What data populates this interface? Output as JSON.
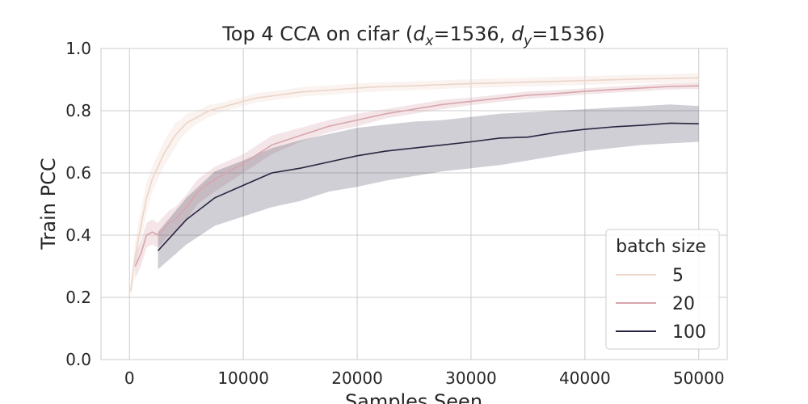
{
  "chart_data": {
    "type": "line",
    "title_prefix": "Top 4 CCA on cifar (",
    "title_dx_sym": "d",
    "title_dx_sub": "x",
    "title_dx_val": "=1536, ",
    "title_dy_sym": "d",
    "title_dy_sub": "y",
    "title_dy_val": "=1536)",
    "xlabel": "Samples Seen",
    "ylabel": "Train PCC",
    "xlim": [
      -2500,
      52500
    ],
    "ylim": [
      0.0,
      1.0
    ],
    "xticks": [
      0,
      10000,
      20000,
      30000,
      40000,
      50000
    ],
    "yticks": [
      0.0,
      0.2,
      0.4,
      0.6,
      0.8,
      1.0
    ],
    "ytick_labels": [
      "0.0",
      "0.2",
      "0.4",
      "0.6",
      "0.8",
      "1.0"
    ],
    "grid": true,
    "legend_title": "batch size",
    "legend_position": "lower-right",
    "series": [
      {
        "name": "5",
        "color": "#ecd5c8",
        "x": [
          100,
          500,
          1000,
          1500,
          2000,
          2500,
          3000,
          3500,
          4000,
          4500,
          5000,
          6000,
          7000,
          8000,
          9000,
          10000,
          11000,
          12000,
          13000,
          14000,
          15000,
          17000,
          19000,
          21000,
          23000,
          25000,
          27000,
          29000,
          31000,
          33000,
          35000,
          37000,
          39000,
          41000,
          43000,
          45000,
          47000,
          49000,
          50000
        ],
        "y": [
          0.22,
          0.33,
          0.43,
          0.52,
          0.58,
          0.62,
          0.66,
          0.69,
          0.72,
          0.74,
          0.76,
          0.78,
          0.8,
          0.81,
          0.82,
          0.83,
          0.84,
          0.845,
          0.85,
          0.855,
          0.86,
          0.865,
          0.87,
          0.875,
          0.878,
          0.88,
          0.883,
          0.886,
          0.888,
          0.89,
          0.892,
          0.894,
          0.896,
          0.898,
          0.9,
          0.902,
          0.903,
          0.905,
          0.905
        ],
        "lower": [
          0.2,
          0.28,
          0.38,
          0.47,
          0.54,
          0.58,
          0.62,
          0.65,
          0.68,
          0.71,
          0.73,
          0.76,
          0.78,
          0.795,
          0.805,
          0.815,
          0.825,
          0.83,
          0.835,
          0.84,
          0.845,
          0.85,
          0.855,
          0.86,
          0.864,
          0.866,
          0.869,
          0.872,
          0.874,
          0.876,
          0.878,
          0.88,
          0.882,
          0.884,
          0.886,
          0.888,
          0.889,
          0.89,
          0.89
        ],
        "upper": [
          0.24,
          0.38,
          0.48,
          0.57,
          0.62,
          0.66,
          0.7,
          0.73,
          0.76,
          0.77,
          0.79,
          0.8,
          0.82,
          0.825,
          0.835,
          0.845,
          0.855,
          0.86,
          0.865,
          0.87,
          0.875,
          0.88,
          0.885,
          0.89,
          0.892,
          0.894,
          0.897,
          0.9,
          0.902,
          0.904,
          0.906,
          0.908,
          0.91,
          0.912,
          0.914,
          0.916,
          0.917,
          0.92,
          0.92
        ]
      },
      {
        "name": "20",
        "color": "#d8a5ae",
        "x": [
          500,
          1000,
          1500,
          2000,
          2500,
          3000,
          3500,
          4000,
          5000,
          6000,
          7500,
          10000,
          12500,
          15000,
          17500,
          20000,
          22500,
          25000,
          27500,
          30000,
          32500,
          35000,
          37500,
          40000,
          42500,
          45000,
          47500,
          50000
        ],
        "y": [
          0.3,
          0.34,
          0.4,
          0.41,
          0.4,
          0.42,
          0.44,
          0.45,
          0.49,
          0.54,
          0.58,
          0.63,
          0.69,
          0.72,
          0.75,
          0.77,
          0.79,
          0.805,
          0.82,
          0.83,
          0.84,
          0.85,
          0.855,
          0.862,
          0.868,
          0.873,
          0.878,
          0.88
        ],
        "lower": [
          0.26,
          0.3,
          0.36,
          0.37,
          0.36,
          0.38,
          0.4,
          0.41,
          0.45,
          0.5,
          0.54,
          0.6,
          0.66,
          0.7,
          0.73,
          0.75,
          0.775,
          0.79,
          0.805,
          0.818,
          0.828,
          0.838,
          0.845,
          0.852,
          0.858,
          0.863,
          0.868,
          0.87
        ],
        "upper": [
          0.34,
          0.38,
          0.44,
          0.45,
          0.44,
          0.46,
          0.48,
          0.49,
          0.53,
          0.58,
          0.62,
          0.66,
          0.72,
          0.745,
          0.77,
          0.79,
          0.805,
          0.82,
          0.835,
          0.842,
          0.852,
          0.862,
          0.866,
          0.872,
          0.878,
          0.883,
          0.888,
          0.89
        ]
      },
      {
        "name": "100",
        "color": "#2b2440",
        "x": [
          2500,
          5000,
          7500,
          10000,
          12500,
          15000,
          17500,
          20000,
          22500,
          25000,
          27500,
          30000,
          32500,
          35000,
          37500,
          40000,
          42500,
          45000,
          47500,
          50000
        ],
        "y": [
          0.35,
          0.45,
          0.52,
          0.56,
          0.6,
          0.615,
          0.635,
          0.655,
          0.67,
          0.68,
          0.69,
          0.7,
          0.712,
          0.715,
          0.73,
          0.74,
          0.748,
          0.753,
          0.76,
          0.758
        ],
        "lower": [
          0.29,
          0.37,
          0.43,
          0.46,
          0.49,
          0.51,
          0.54,
          0.555,
          0.575,
          0.59,
          0.605,
          0.615,
          0.625,
          0.64,
          0.655,
          0.67,
          0.68,
          0.69,
          0.695,
          0.7
        ],
        "upper": [
          0.41,
          0.52,
          0.605,
          0.64,
          0.68,
          0.705,
          0.725,
          0.745,
          0.755,
          0.765,
          0.77,
          0.78,
          0.79,
          0.795,
          0.8,
          0.805,
          0.81,
          0.815,
          0.82,
          0.815
        ]
      }
    ]
  }
}
